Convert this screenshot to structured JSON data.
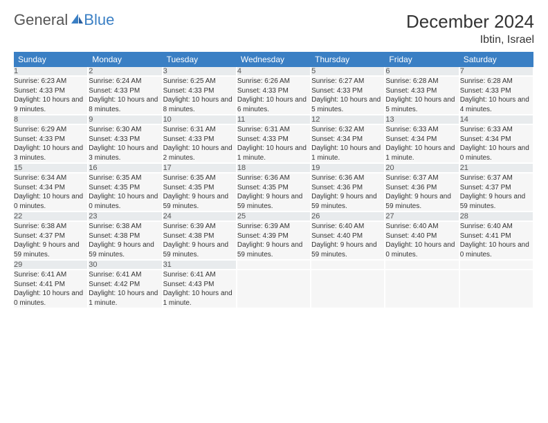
{
  "logo": {
    "text1": "General",
    "text2": "Blue"
  },
  "title": "December 2024",
  "location": "Ibtin, Israel",
  "weekdays": [
    "Sunday",
    "Monday",
    "Tuesday",
    "Wednesday",
    "Thursday",
    "Friday",
    "Saturday"
  ],
  "colors": {
    "header_bg": "#3a7fc4",
    "daynum_bg": "#e8ebed",
    "content_bg": "#f6f6f6"
  },
  "weeks": [
    [
      {
        "n": "1",
        "sr": "6:23 AM",
        "ss": "4:33 PM",
        "dl": "10 hours and 9 minutes."
      },
      {
        "n": "2",
        "sr": "6:24 AM",
        "ss": "4:33 PM",
        "dl": "10 hours and 8 minutes."
      },
      {
        "n": "3",
        "sr": "6:25 AM",
        "ss": "4:33 PM",
        "dl": "10 hours and 8 minutes."
      },
      {
        "n": "4",
        "sr": "6:26 AM",
        "ss": "4:33 PM",
        "dl": "10 hours and 6 minutes."
      },
      {
        "n": "5",
        "sr": "6:27 AM",
        "ss": "4:33 PM",
        "dl": "10 hours and 5 minutes."
      },
      {
        "n": "6",
        "sr": "6:28 AM",
        "ss": "4:33 PM",
        "dl": "10 hours and 5 minutes."
      },
      {
        "n": "7",
        "sr": "6:28 AM",
        "ss": "4:33 PM",
        "dl": "10 hours and 4 minutes."
      }
    ],
    [
      {
        "n": "8",
        "sr": "6:29 AM",
        "ss": "4:33 PM",
        "dl": "10 hours and 3 minutes."
      },
      {
        "n": "9",
        "sr": "6:30 AM",
        "ss": "4:33 PM",
        "dl": "10 hours and 3 minutes."
      },
      {
        "n": "10",
        "sr": "6:31 AM",
        "ss": "4:33 PM",
        "dl": "10 hours and 2 minutes."
      },
      {
        "n": "11",
        "sr": "6:31 AM",
        "ss": "4:33 PM",
        "dl": "10 hours and 1 minute."
      },
      {
        "n": "12",
        "sr": "6:32 AM",
        "ss": "4:34 PM",
        "dl": "10 hours and 1 minute."
      },
      {
        "n": "13",
        "sr": "6:33 AM",
        "ss": "4:34 PM",
        "dl": "10 hours and 1 minute."
      },
      {
        "n": "14",
        "sr": "6:33 AM",
        "ss": "4:34 PM",
        "dl": "10 hours and 0 minutes."
      }
    ],
    [
      {
        "n": "15",
        "sr": "6:34 AM",
        "ss": "4:34 PM",
        "dl": "10 hours and 0 minutes."
      },
      {
        "n": "16",
        "sr": "6:35 AM",
        "ss": "4:35 PM",
        "dl": "10 hours and 0 minutes."
      },
      {
        "n": "17",
        "sr": "6:35 AM",
        "ss": "4:35 PM",
        "dl": "9 hours and 59 minutes."
      },
      {
        "n": "18",
        "sr": "6:36 AM",
        "ss": "4:35 PM",
        "dl": "9 hours and 59 minutes."
      },
      {
        "n": "19",
        "sr": "6:36 AM",
        "ss": "4:36 PM",
        "dl": "9 hours and 59 minutes."
      },
      {
        "n": "20",
        "sr": "6:37 AM",
        "ss": "4:36 PM",
        "dl": "9 hours and 59 minutes."
      },
      {
        "n": "21",
        "sr": "6:37 AM",
        "ss": "4:37 PM",
        "dl": "9 hours and 59 minutes."
      }
    ],
    [
      {
        "n": "22",
        "sr": "6:38 AM",
        "ss": "4:37 PM",
        "dl": "9 hours and 59 minutes."
      },
      {
        "n": "23",
        "sr": "6:38 AM",
        "ss": "4:38 PM",
        "dl": "9 hours and 59 minutes."
      },
      {
        "n": "24",
        "sr": "6:39 AM",
        "ss": "4:38 PM",
        "dl": "9 hours and 59 minutes."
      },
      {
        "n": "25",
        "sr": "6:39 AM",
        "ss": "4:39 PM",
        "dl": "9 hours and 59 minutes."
      },
      {
        "n": "26",
        "sr": "6:40 AM",
        "ss": "4:40 PM",
        "dl": "9 hours and 59 minutes."
      },
      {
        "n": "27",
        "sr": "6:40 AM",
        "ss": "4:40 PM",
        "dl": "10 hours and 0 minutes."
      },
      {
        "n": "28",
        "sr": "6:40 AM",
        "ss": "4:41 PM",
        "dl": "10 hours and 0 minutes."
      }
    ],
    [
      {
        "n": "29",
        "sr": "6:41 AM",
        "ss": "4:41 PM",
        "dl": "10 hours and 0 minutes."
      },
      {
        "n": "30",
        "sr": "6:41 AM",
        "ss": "4:42 PM",
        "dl": "10 hours and 1 minute."
      },
      {
        "n": "31",
        "sr": "6:41 AM",
        "ss": "4:43 PM",
        "dl": "10 hours and 1 minute."
      },
      null,
      null,
      null,
      null
    ]
  ],
  "labels": {
    "sunrise": "Sunrise:",
    "sunset": "Sunset:",
    "daylight": "Daylight:"
  }
}
